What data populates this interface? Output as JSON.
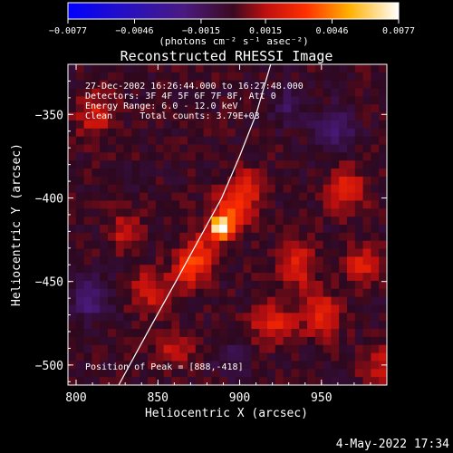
{
  "chart_data": {
    "type": "heatmap",
    "title": "Reconstructed RHESSI Image",
    "xlabel": "Heliocentric X (arcsec)",
    "ylabel": "Heliocentric Y (arcsec)",
    "xlim": [
      795,
      990
    ],
    "ylim": [
      -512,
      -320
    ],
    "x_ticks": [
      800,
      850,
      900,
      950
    ],
    "x_tick_labels": [
      "800",
      "850",
      "900",
      "950"
    ],
    "y_ticks": [
      -350,
      -400,
      -450,
      -500
    ],
    "y_tick_labels": [
      "−350",
      "−400",
      "−450",
      "−500"
    ],
    "colorbar": {
      "min": -0.0077,
      "max": 0.0077,
      "ticks": [
        -0.0077,
        -0.0046,
        -0.0015,
        0.0015,
        0.0046,
        0.0077
      ],
      "tick_labels": [
        "−0.0077",
        "−0.0046",
        "−0.0015",
        "0.0015",
        "0.0046",
        "0.0077"
      ],
      "unit_label": "(photons cm⁻² s⁻¹ asec⁻²)"
    },
    "annotations": [
      "27-Dec-2002 16:26:44.000 to 16:27:48.000",
      "Detectors: 3F 4F 5F 6F 7F 8F, Att 0",
      "Energy Range: 6.0 - 12.0 keV",
      "Clean     Total counts: 3.79E+03"
    ],
    "peak_label": "Position of Peak = [888,-418]",
    "peak": {
      "x": 888,
      "y": -418,
      "value": 0.0077
    },
    "limb_curve": [
      [
        826,
        -512
      ],
      [
        845,
        -478
      ],
      [
        861,
        -450
      ],
      [
        875,
        -425
      ],
      [
        889,
        -400
      ],
      [
        900,
        -375
      ],
      [
        910,
        -350
      ],
      [
        919,
        -320
      ]
    ],
    "sources": [
      {
        "x": 888,
        "y": -418,
        "amp": 0.0078,
        "sx": 4,
        "sy": 4
      },
      {
        "x": 893,
        "y": -410,
        "amp": 0.0032,
        "sx": 7,
        "sy": 9
      },
      {
        "x": 875,
        "y": -433,
        "amp": 0.0028,
        "sx": 7,
        "sy": 8
      },
      {
        "x": 868,
        "y": -445,
        "amp": 0.0025,
        "sx": 6,
        "sy": 7
      },
      {
        "x": 905,
        "y": -395,
        "amp": 0.0024,
        "sx": 7,
        "sy": 9
      },
      {
        "x": 935,
        "y": -440,
        "amp": 0.0024,
        "sx": 8,
        "sy": 9
      },
      {
        "x": 950,
        "y": -470,
        "amp": 0.0026,
        "sx": 8,
        "sy": 9
      },
      {
        "x": 965,
        "y": -395,
        "amp": 0.0025,
        "sx": 8,
        "sy": 9
      },
      {
        "x": 975,
        "y": -440,
        "amp": 0.0022,
        "sx": 7,
        "sy": 8
      },
      {
        "x": 920,
        "y": -475,
        "amp": 0.0024,
        "sx": 9,
        "sy": 8
      },
      {
        "x": 845,
        "y": -455,
        "amp": 0.0021,
        "sx": 8,
        "sy": 9
      },
      {
        "x": 830,
        "y": -420,
        "amp": 0.0018,
        "sx": 7,
        "sy": 8
      },
      {
        "x": 812,
        "y": -350,
        "amp": 0.0022,
        "sx": 8,
        "sy": 9
      },
      {
        "x": 860,
        "y": -490,
        "amp": 0.0018,
        "sx": 9,
        "sy": 7
      },
      {
        "x": 958,
        "y": -360,
        "amp": -0.0018,
        "sx": 9,
        "sy": 10
      },
      {
        "x": 808,
        "y": -460,
        "amp": -0.0022,
        "sx": 8,
        "sy": 9
      },
      {
        "x": 930,
        "y": -345,
        "amp": -0.0014,
        "sx": 7,
        "sy": 8
      },
      {
        "x": 895,
        "y": -495,
        "amp": -0.0012,
        "sx": 8,
        "sy": 7
      },
      {
        "x": 985,
        "y": -500,
        "amp": 0.0016,
        "sx": 8,
        "sy": 8
      }
    ]
  },
  "footer": {
    "timestamp": "4-May-2022 17:34"
  }
}
